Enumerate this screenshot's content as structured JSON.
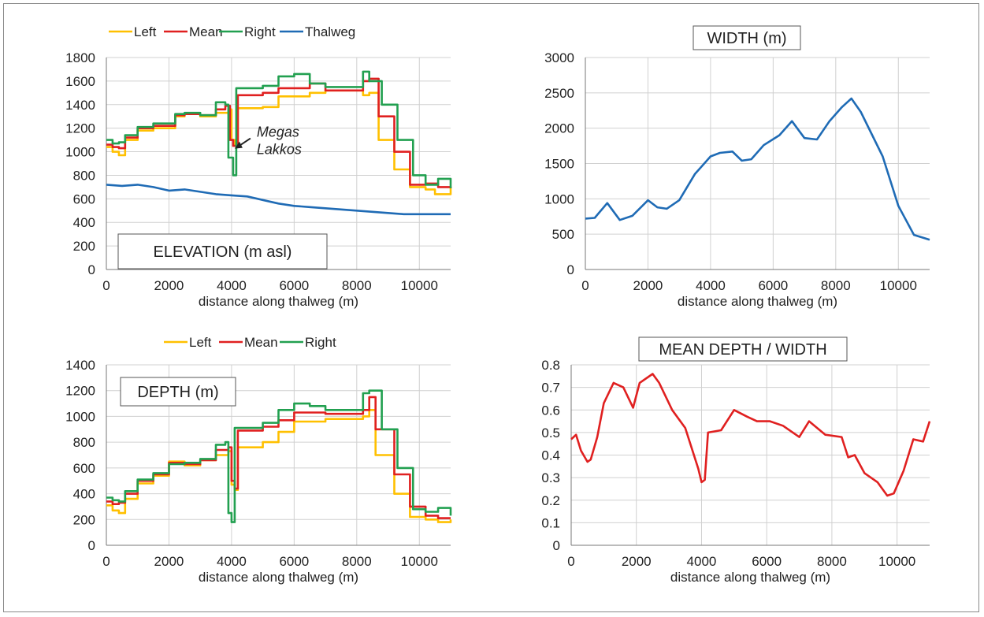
{
  "chart_data": [
    {
      "id": "elevation",
      "type": "line",
      "title": "ELEVATION (m asl)",
      "xlabel": "distance along thalweg (m)",
      "ylabel": "",
      "xlim": [
        0,
        11000
      ],
      "ylim": [
        0,
        1800
      ],
      "xticks": [
        0,
        2000,
        4000,
        6000,
        8000,
        10000
      ],
      "yticks": [
        0,
        200,
        400,
        600,
        800,
        1000,
        1200,
        1400,
        1600,
        1800
      ],
      "grid": true,
      "legend": "top",
      "annotation": {
        "lines": [
          "Megas",
          "Lakkos"
        ],
        "x": 4050,
        "y": 1020
      },
      "series": [
        {
          "name": "Left",
          "color": "#ffc000",
          "step": true,
          "x": [
            0,
            200,
            400,
            600,
            1000,
            1500,
            2200,
            2500,
            3000,
            3500,
            3900,
            4000,
            4100,
            4200,
            5000,
            5500,
            6500,
            7000,
            8200,
            8400,
            8700,
            9200,
            9700,
            10200,
            10500,
            11000
          ],
          "y": [
            1040,
            1000,
            970,
            1100,
            1180,
            1200,
            1300,
            1320,
            1300,
            1330,
            1360,
            1100,
            1060,
            1370,
            1380,
            1470,
            1500,
            1520,
            1480,
            1500,
            1100,
            850,
            700,
            680,
            640,
            700
          ]
        },
        {
          "name": "Mean",
          "color": "#e02020",
          "step": true,
          "x": [
            0,
            200,
            400,
            600,
            1000,
            1500,
            2200,
            2500,
            3000,
            3500,
            3800,
            3950,
            4050,
            4200,
            5000,
            5500,
            6500,
            7000,
            8200,
            8400,
            8700,
            9200,
            9700,
            10200,
            10600,
            11000
          ],
          "y": [
            1060,
            1040,
            1030,
            1120,
            1200,
            1220,
            1310,
            1320,
            1310,
            1360,
            1390,
            1100,
            1050,
            1480,
            1500,
            1540,
            1580,
            1520,
            1600,
            1620,
            1300,
            1000,
            720,
            730,
            700,
            690
          ]
        },
        {
          "name": "Right",
          "color": "#22a050",
          "step": true,
          "x": [
            0,
            200,
            400,
            600,
            1000,
            1500,
            2200,
            2500,
            3000,
            3500,
            3800,
            3900,
            4050,
            4150,
            5000,
            5500,
            6000,
            6500,
            7000,
            8200,
            8400,
            8800,
            9300,
            9800,
            10200,
            10600,
            11000
          ],
          "y": [
            1100,
            1070,
            1080,
            1140,
            1210,
            1240,
            1320,
            1330,
            1310,
            1420,
            1400,
            950,
            800,
            1540,
            1560,
            1640,
            1660,
            1580,
            1550,
            1680,
            1600,
            1400,
            1100,
            800,
            720,
            770,
            690
          ]
        },
        {
          "name": "Thalweg",
          "color": "#1f6bb5",
          "step": false,
          "x": [
            0,
            500,
            1000,
            1500,
            2000,
            2500,
            3000,
            3500,
            4000,
            4500,
            5000,
            5500,
            6000,
            6500,
            7000,
            7500,
            8000,
            8500,
            9000,
            9500,
            10000,
            10500,
            11000
          ],
          "y": [
            720,
            710,
            720,
            700,
            670,
            680,
            660,
            640,
            630,
            620,
            590,
            560,
            540,
            530,
            520,
            510,
            500,
            490,
            480,
            470,
            470,
            470,
            470
          ]
        }
      ]
    },
    {
      "id": "width",
      "type": "line",
      "title": "WIDTH (m)",
      "xlabel": "distance along thalweg (m)",
      "ylabel": "",
      "xlim": [
        0,
        11000
      ],
      "ylim": [
        0,
        3000
      ],
      "xticks": [
        0,
        2000,
        4000,
        6000,
        8000,
        10000
      ],
      "yticks": [
        0,
        500,
        1000,
        1500,
        2000,
        2500,
        3000
      ],
      "grid": true,
      "series": [
        {
          "name": "",
          "color": "#1f6bb5",
          "step": false,
          "x": [
            0,
            300,
            700,
            1100,
            1500,
            2000,
            2300,
            2600,
            3000,
            3500,
            4000,
            4300,
            4700,
            5000,
            5300,
            5700,
            6200,
            6600,
            7000,
            7400,
            7800,
            8200,
            8500,
            8800,
            9500,
            10000,
            10500,
            11000
          ],
          "y": [
            720,
            730,
            940,
            700,
            760,
            980,
            880,
            860,
            980,
            1350,
            1600,
            1650,
            1670,
            1540,
            1560,
            1760,
            1900,
            2100,
            1860,
            1840,
            2100,
            2300,
            2420,
            2230,
            1600,
            900,
            490,
            420
          ]
        }
      ]
    },
    {
      "id": "depth",
      "type": "line",
      "title": "DEPTH (m)",
      "xlabel": "distance along thalweg (m)",
      "ylabel": "",
      "xlim": [
        0,
        11000
      ],
      "ylim": [
        0,
        1400
      ],
      "xticks": [
        0,
        2000,
        4000,
        6000,
        8000,
        10000
      ],
      "yticks": [
        0,
        200,
        400,
        600,
        800,
        1000,
        1200,
        1400
      ],
      "grid": true,
      "legend": "top",
      "series": [
        {
          "name": "Left",
          "color": "#ffc000",
          "step": true,
          "x": [
            0,
            200,
            400,
            600,
            1000,
            1500,
            2000,
            2500,
            3000,
            3500,
            3900,
            4000,
            4100,
            4200,
            5000,
            5500,
            6000,
            7000,
            8200,
            8400,
            8600,
            9200,
            9700,
            10200,
            10600,
            11000
          ],
          "y": [
            310,
            270,
            250,
            360,
            480,
            540,
            650,
            620,
            660,
            700,
            730,
            470,
            430,
            760,
            800,
            880,
            960,
            980,
            1000,
            1050,
            700,
            400,
            220,
            200,
            180,
            200
          ]
        },
        {
          "name": "Mean",
          "color": "#e02020",
          "step": true,
          "x": [
            0,
            200,
            400,
            600,
            1000,
            1500,
            2000,
            2500,
            3000,
            3500,
            3900,
            4000,
            4100,
            4200,
            5000,
            5500,
            6000,
            7000,
            8200,
            8400,
            8600,
            9200,
            9700,
            10200,
            10600,
            11000
          ],
          "y": [
            340,
            320,
            330,
            400,
            500,
            550,
            640,
            630,
            660,
            740,
            760,
            500,
            440,
            890,
            920,
            970,
            1030,
            1020,
            1050,
            1150,
            900,
            550,
            300,
            230,
            210,
            210
          ]
        },
        {
          "name": "Right",
          "color": "#22a050",
          "step": true,
          "x": [
            0,
            200,
            400,
            600,
            1000,
            1500,
            2000,
            2500,
            3000,
            3500,
            3800,
            3900,
            4000,
            4100,
            5000,
            5500,
            6000,
            6500,
            7000,
            8200,
            8400,
            8800,
            9300,
            9800,
            10200,
            10600,
            11000
          ],
          "y": [
            370,
            350,
            340,
            420,
            510,
            560,
            630,
            640,
            670,
            780,
            800,
            250,
            180,
            910,
            950,
            1050,
            1100,
            1080,
            1050,
            1180,
            1200,
            900,
            600,
            280,
            260,
            290,
            230
          ]
        }
      ]
    },
    {
      "id": "ratio",
      "type": "line",
      "title": "MEAN DEPTH / WIDTH",
      "xlabel": "distance along thalweg (m)",
      "ylabel": "",
      "xlim": [
        0,
        11000
      ],
      "ylim": [
        0,
        0.8
      ],
      "xticks": [
        0,
        2000,
        4000,
        6000,
        8000,
        10000
      ],
      "yticks": [
        0,
        0.1,
        0.2,
        0.3,
        0.4,
        0.5,
        0.6,
        0.7,
        0.8
      ],
      "grid": true,
      "series": [
        {
          "name": "",
          "color": "#e02020",
          "step": false,
          "x": [
            0,
            150,
            300,
            500,
            600,
            800,
            1000,
            1300,
            1600,
            1900,
            2100,
            2500,
            2700,
            3100,
            3500,
            3900,
            4000,
            4100,
            4200,
            4600,
            5000,
            5400,
            5700,
            6100,
            6500,
            7000,
            7300,
            7800,
            8300,
            8500,
            8700,
            9000,
            9400,
            9700,
            9900,
            10200,
            10500,
            10800,
            11000
          ],
          "y": [
            0.47,
            0.49,
            0.42,
            0.37,
            0.38,
            0.48,
            0.63,
            0.72,
            0.7,
            0.61,
            0.72,
            0.76,
            0.72,
            0.6,
            0.52,
            0.34,
            0.28,
            0.29,
            0.5,
            0.51,
            0.6,
            0.57,
            0.55,
            0.55,
            0.53,
            0.48,
            0.55,
            0.49,
            0.48,
            0.39,
            0.4,
            0.32,
            0.28,
            0.22,
            0.23,
            0.33,
            0.47,
            0.46,
            0.55
          ]
        }
      ]
    }
  ]
}
